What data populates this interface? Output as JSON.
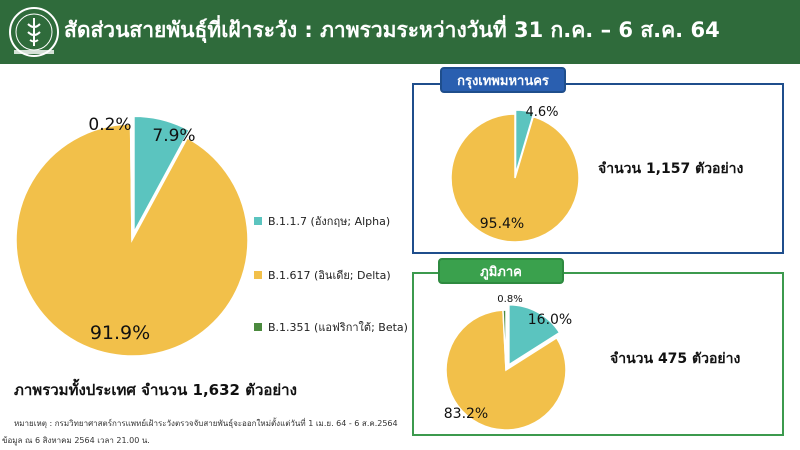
{
  "header": {
    "title": "สัดส่วนสายพันธุ์ที่เฝ้าระวัง : ภาพรวมระหว่างวันที่ 31 ก.ค. – 6 ส.ค. 64"
  },
  "colors": {
    "header_bg": "#2f6b3b",
    "alpha": "#5bc4bf",
    "delta": "#f2c04a",
    "beta": "#4b8a3e",
    "bangkok_border": "#1f4e8c",
    "region_border": "#3c9a4e"
  },
  "chart_data": [
    {
      "type": "pie",
      "categories": [
        "B.1.1.7 (อังกฤษ; Alpha)",
        "B.1.617 (อินเดีย; Delta)",
        "B.1.351 (แอฟริกาใต้; Beta)"
      ],
      "values": [
        7.9,
        91.9,
        0.2
      ],
      "value_labels": [
        "7.9%",
        "91.9%",
        "0.2%"
      ],
      "legend_placement": "right",
      "caption": "ภาพรวมทั้งประเทศ จำนวน 1,632 ตัวอย่าง"
    },
    {
      "type": "pie",
      "title": "กรุงเทพมหานคร",
      "categories": [
        "B.1.1.7 (อังกฤษ; Alpha)",
        "B.1.617 (อินเดีย; Delta)"
      ],
      "values": [
        4.6,
        95.4
      ],
      "value_labels": [
        "4.6%",
        "95.4%"
      ],
      "caption": "จำนวน 1,157 ตัวอย่าง"
    },
    {
      "type": "pie",
      "title": "ภูมิภาค",
      "categories": [
        "B.1.1.7 (อังกฤษ; Alpha)",
        "B.1.617 (อินเดีย; Delta)",
        "B.1.351 (แอฟริกาใต้; Beta)"
      ],
      "values": [
        16.0,
        83.2,
        0.8
      ],
      "value_labels": [
        "16.0%",
        "83.2%",
        "0.8%"
      ],
      "caption": "จำนวน 475 ตัวอย่าง"
    }
  ],
  "footer": {
    "note": "หมายเหตุ : กรมวิทยาศาสตร์การแพทย์เฝ้าระวังตรวจจับสายพันธุ์จะออกใหม่ตั้งแต่วันที่ 1 เม.ย. 64 - 6 ส.ค.2564",
    "date": "ข้อมูล ณ 6 สิงหาคม 2564 เวลา 21.00 น."
  }
}
